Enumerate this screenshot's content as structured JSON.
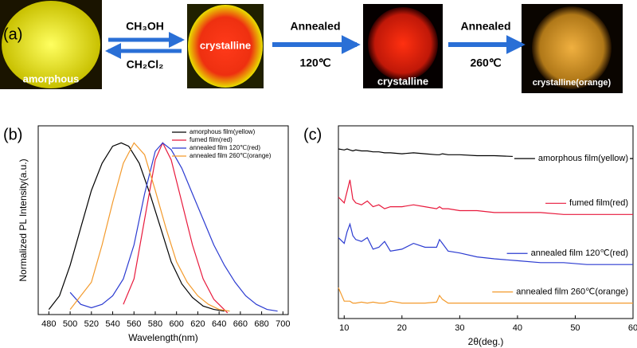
{
  "panel_a": {
    "label": "(a)",
    "photo_labels": [
      "amorphous",
      "crystalline",
      "crystalline",
      "crystalline(orange)"
    ],
    "steps": [
      {
        "top": "CH₃OH",
        "bottom": "CH₂Cl₂"
      },
      {
        "top": "Annealed",
        "bottom": "120℃"
      },
      {
        "top": "Annealed",
        "bottom": "260℃"
      }
    ]
  },
  "chart_data": [
    {
      "type": "line",
      "panel_label": "(b)",
      "xlabel": "Wavelength(nm)",
      "ylabel": "Normalized PL Intensity(a.u.)",
      "xlim": [
        470,
        705
      ],
      "ylim": [
        -0.01,
        1.1
      ],
      "xticks": [
        480,
        500,
        520,
        540,
        560,
        580,
        600,
        620,
        640,
        660,
        680,
        700
      ],
      "series": [
        {
          "name": "amorphous film(yellow)",
          "color": "#000000",
          "x": [
            480,
            490,
            500,
            510,
            520,
            530,
            540,
            548,
            555,
            565,
            575,
            585,
            595,
            605,
            615,
            625,
            635,
            645
          ],
          "values": [
            0.02,
            0.1,
            0.28,
            0.5,
            0.72,
            0.88,
            0.98,
            1.0,
            0.98,
            0.88,
            0.7,
            0.5,
            0.3,
            0.17,
            0.09,
            0.04,
            0.02,
            0.01
          ]
        },
        {
          "name": "fumed film(red)",
          "color": "#e8193c",
          "x": [
            550,
            560,
            570,
            580,
            587,
            595,
            605,
            615,
            625,
            635,
            648
          ],
          "values": [
            0.05,
            0.2,
            0.55,
            0.9,
            1.0,
            0.9,
            0.65,
            0.4,
            0.2,
            0.08,
            0.0
          ]
        },
        {
          "name": "annealed film 120℃(red)",
          "color": "#2b3bd1",
          "x": [
            500,
            510,
            520,
            530,
            540,
            550,
            560,
            570,
            580,
            587,
            595,
            605,
            615,
            625,
            635,
            645,
            655,
            665,
            675,
            685,
            695
          ],
          "values": [
            0.12,
            0.05,
            0.03,
            0.05,
            0.1,
            0.2,
            0.4,
            0.7,
            0.95,
            1.0,
            0.96,
            0.85,
            0.7,
            0.55,
            0.4,
            0.28,
            0.18,
            0.1,
            0.05,
            0.02,
            0.01
          ]
        },
        {
          "name": "annealed film 260℃(orange)",
          "color": "#f39a2c",
          "x": [
            500,
            520,
            530,
            540,
            550,
            560,
            570,
            580,
            590,
            600,
            610,
            620,
            630,
            640,
            650
          ],
          "values": [
            0.02,
            0.18,
            0.4,
            0.65,
            0.88,
            1.0,
            0.93,
            0.72,
            0.5,
            0.3,
            0.18,
            0.1,
            0.05,
            0.02,
            0.01
          ]
        }
      ]
    },
    {
      "type": "line",
      "panel_label": "(c)",
      "xlabel": "2θ(deg.)",
      "xlim": [
        9,
        60
      ],
      "ylim": [
        0,
        10
      ],
      "xticks": [
        10,
        20,
        30,
        40,
        50,
        60
      ],
      "x": [
        9,
        10,
        10.5,
        11,
        11.5,
        12,
        13,
        14,
        15,
        16,
        17,
        18,
        20,
        22,
        24,
        26,
        26.5,
        27,
        28,
        30,
        33,
        36,
        40,
        44,
        48,
        52,
        56,
        60
      ],
      "series": [
        {
          "name": "amorphous film(yellow)",
          "color": "#000000",
          "values": [
            8.8,
            8.75,
            8.8,
            8.75,
            8.7,
            8.75,
            8.7,
            8.7,
            8.65,
            8.65,
            8.6,
            8.6,
            8.55,
            8.6,
            8.55,
            8.5,
            8.5,
            8.55,
            8.5,
            8.5,
            8.45,
            8.45,
            8.4,
            8.4,
            8.35,
            8.35,
            8.3,
            8.3
          ]
        },
        {
          "name": "fumed film(red)",
          "color": "#e8193c",
          "values": [
            6.3,
            6.0,
            6.6,
            7.2,
            6.2,
            6.0,
            5.9,
            6.1,
            5.8,
            5.9,
            5.7,
            5.8,
            5.8,
            5.9,
            5.8,
            5.7,
            5.8,
            5.7,
            5.7,
            5.6,
            5.6,
            5.5,
            5.5,
            5.5,
            5.4,
            5.4,
            5.4,
            5.4
          ]
        },
        {
          "name": "annealed film 120℃(red)",
          "color": "#2b3bd1",
          "values": [
            4.2,
            3.9,
            4.5,
            4.9,
            4.3,
            4.1,
            4.0,
            4.2,
            3.6,
            3.7,
            4.0,
            3.5,
            3.6,
            3.9,
            3.7,
            3.7,
            4.1,
            3.9,
            3.5,
            3.4,
            3.2,
            3.1,
            3.0,
            2.9,
            2.9,
            2.8,
            2.8,
            2.8
          ]
        },
        {
          "name": "annealed film 260℃(orange)",
          "color": "#f39a2c",
          "values": [
            1.6,
            0.9,
            0.9,
            0.9,
            0.8,
            0.8,
            0.85,
            0.8,
            0.85,
            0.8,
            0.8,
            0.9,
            0.8,
            0.8,
            0.8,
            0.85,
            1.2,
            1.0,
            0.8,
            0.8,
            0.8,
            0.8,
            0.8,
            0.8,
            0.8,
            0.8,
            0.8,
            0.8
          ]
        }
      ]
    }
  ]
}
